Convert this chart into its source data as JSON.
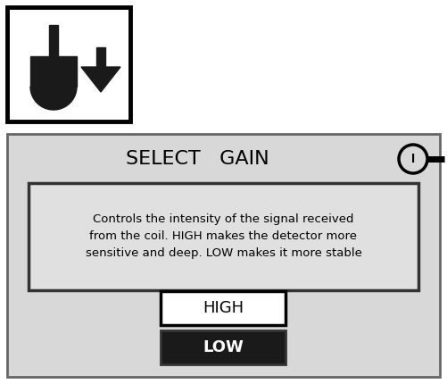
{
  "bg_color": "#ffffff",
  "panel_bg": "#d8d8d8",
  "title": "SELECT   GAIN",
  "title_fontsize": 16,
  "desc_text": "Controls the intensity of the signal received\nfrom the coil. HIGH makes the detector more\nsensitive and deep. LOW makes it more stable",
  "desc_fontsize": 9.5,
  "high_label": "HIGH",
  "low_label": "LOW",
  "button_fontsize": 13,
  "dark_color": "#1a1a1a",
  "panel_color": "#d8d8d8",
  "desc_box_color": "#e0e0e0"
}
